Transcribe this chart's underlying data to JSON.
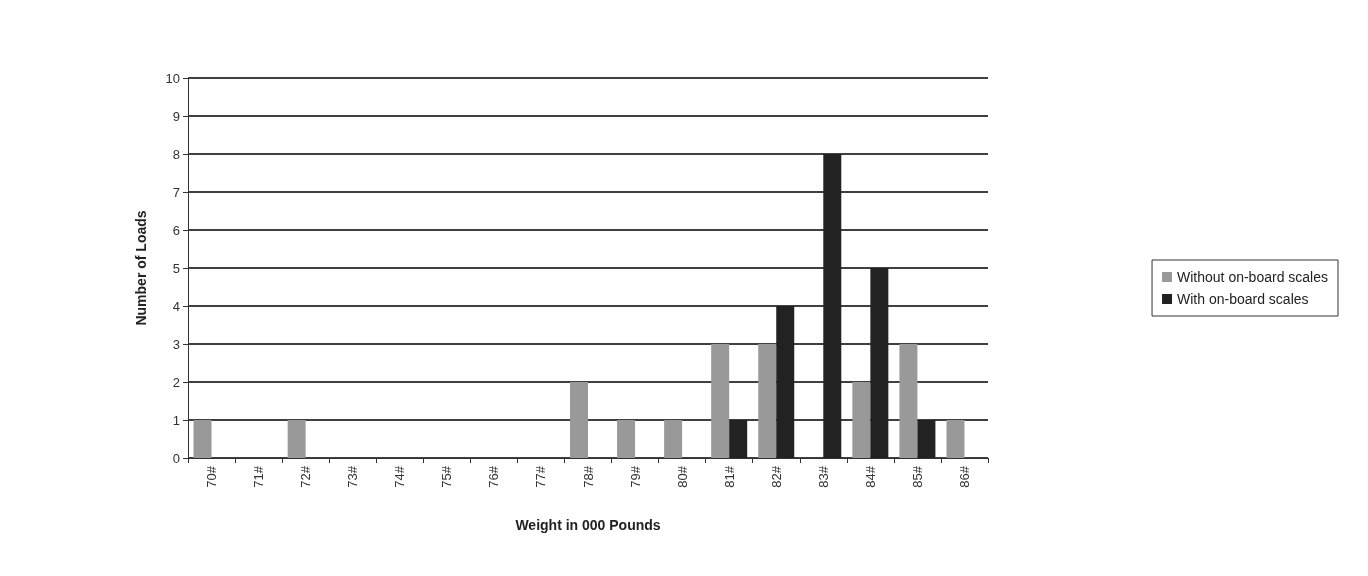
{
  "chart_data": {
    "type": "bar",
    "xlabel": "Weight in 000 Pounds",
    "ylabel": "Number of Loads",
    "categories": [
      "70#",
      "71#",
      "72#",
      "73#",
      "74#",
      "75#",
      "76#",
      "77#",
      "78#",
      "79#",
      "80#",
      "81#",
      "82#",
      "83#",
      "84#",
      "85#",
      "86#"
    ],
    "series": [
      {
        "name": "Without on-board scales",
        "color": "#999999",
        "values": [
          1,
          0,
          1,
          0,
          0,
          0,
          0,
          0,
          2,
          1,
          1,
          3,
          3,
          0,
          2,
          3,
          1
        ]
      },
      {
        "name": "With on-board scales",
        "color": "#222222",
        "values": [
          0,
          0,
          0,
          0,
          0,
          0,
          0,
          0,
          0,
          0,
          0,
          1,
          4,
          8,
          5,
          1,
          0
        ]
      }
    ],
    "ylim": [
      0,
      10
    ],
    "yticks": [
      0,
      1,
      2,
      3,
      4,
      5,
      6,
      7,
      8,
      9,
      10
    ],
    "grid": "y",
    "legend": "right"
  }
}
